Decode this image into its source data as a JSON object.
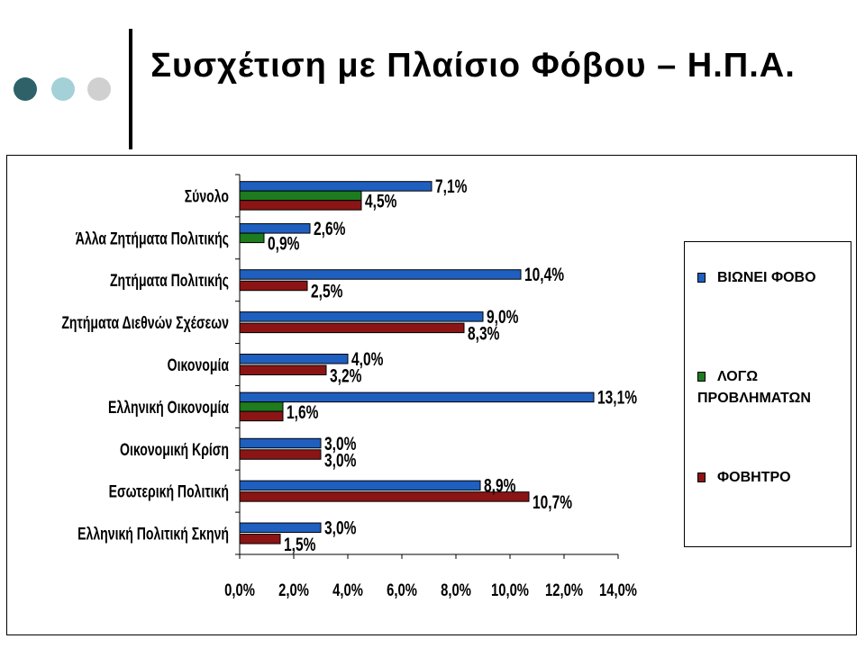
{
  "title": "Συσχέτιση με Πλαίσιο Φόβου – Η.Π.Α.",
  "decor": {
    "dots": [
      {
        "name": "dot-dark",
        "color": "#2E6268"
      },
      {
        "name": "dot-light",
        "color": "#A4D0D8"
      },
      {
        "name": "dot-grey",
        "color": "#D0D0D0"
      }
    ]
  },
  "chart_data": {
    "type": "bar",
    "orientation": "horizontal",
    "categories": [
      "Σύνολο",
      "Άλλα Ζητήματα Πολιτικής",
      "Ζητήματα Πολιτικής",
      "Ζητήματα Διεθνών Σχέσεων",
      "Οικονομία",
      "Ελληνική Οικονομία",
      "Οικονομική Κρίση",
      "Εσωτερική Πολιτική",
      "Ελληνική Πολιτική Σκηνή"
    ],
    "series": [
      {
        "name": "ΒΙΩΝΕΙ ΦΟΒΟ",
        "color": "#1F5FBF",
        "values": [
          7.1,
          2.6,
          10.4,
          9.0,
          4.0,
          13.1,
          3.0,
          8.9,
          3.0
        ],
        "labels": [
          "7,1%",
          "2,6%",
          "10,4%",
          "9,0%",
          "4,0%",
          "13,1%",
          "3,0%",
          "8,9%",
          "3,0%"
        ]
      },
      {
        "name": "ΛΟΓΩ ΠΡΟΒΛΗΜΑΤΩΝ",
        "color": "#1E7B1E",
        "values": [
          4.5,
          0.9,
          null,
          null,
          null,
          1.6,
          null,
          null,
          null
        ],
        "labels": [
          "4,5%",
          "0,9%",
          "",
          "",
          "",
          "1,6%",
          "",
          "",
          ""
        ]
      },
      {
        "name": "ΦΟΒΗΤΡΟ",
        "color": "#8B1515",
        "values": [
          4.5,
          null,
          2.5,
          8.3,
          3.2,
          1.6,
          3.0,
          10.7,
          1.5
        ],
        "labels": [
          "",
          "",
          "2,5%",
          "8,3%",
          "3,2%",
          "",
          "3,0%",
          "10,7%",
          "1,5%"
        ]
      }
    ],
    "x_ticks": [
      "0,0%",
      "2,0%",
      "4,0%",
      "6,0%",
      "8,0%",
      "10,0%",
      "12,0%",
      "14,0%"
    ],
    "xlim": [
      0,
      14
    ],
    "grid": false,
    "legend": {
      "position": "right",
      "items": [
        {
          "lines": [
            "ΒΙΩΝΕΙ ΦΟΒΟ"
          ],
          "color": "#1F5FBF"
        },
        {
          "lines": [
            "ΛΟΓΩ",
            "ΠΡΟΒΛΗΜΑΤΩΝ"
          ],
          "color": "#1E7B1E"
        },
        {
          "lines": [
            "ΦΟΒΗΤΡΟ"
          ],
          "color": "#8B1515"
        }
      ]
    }
  }
}
